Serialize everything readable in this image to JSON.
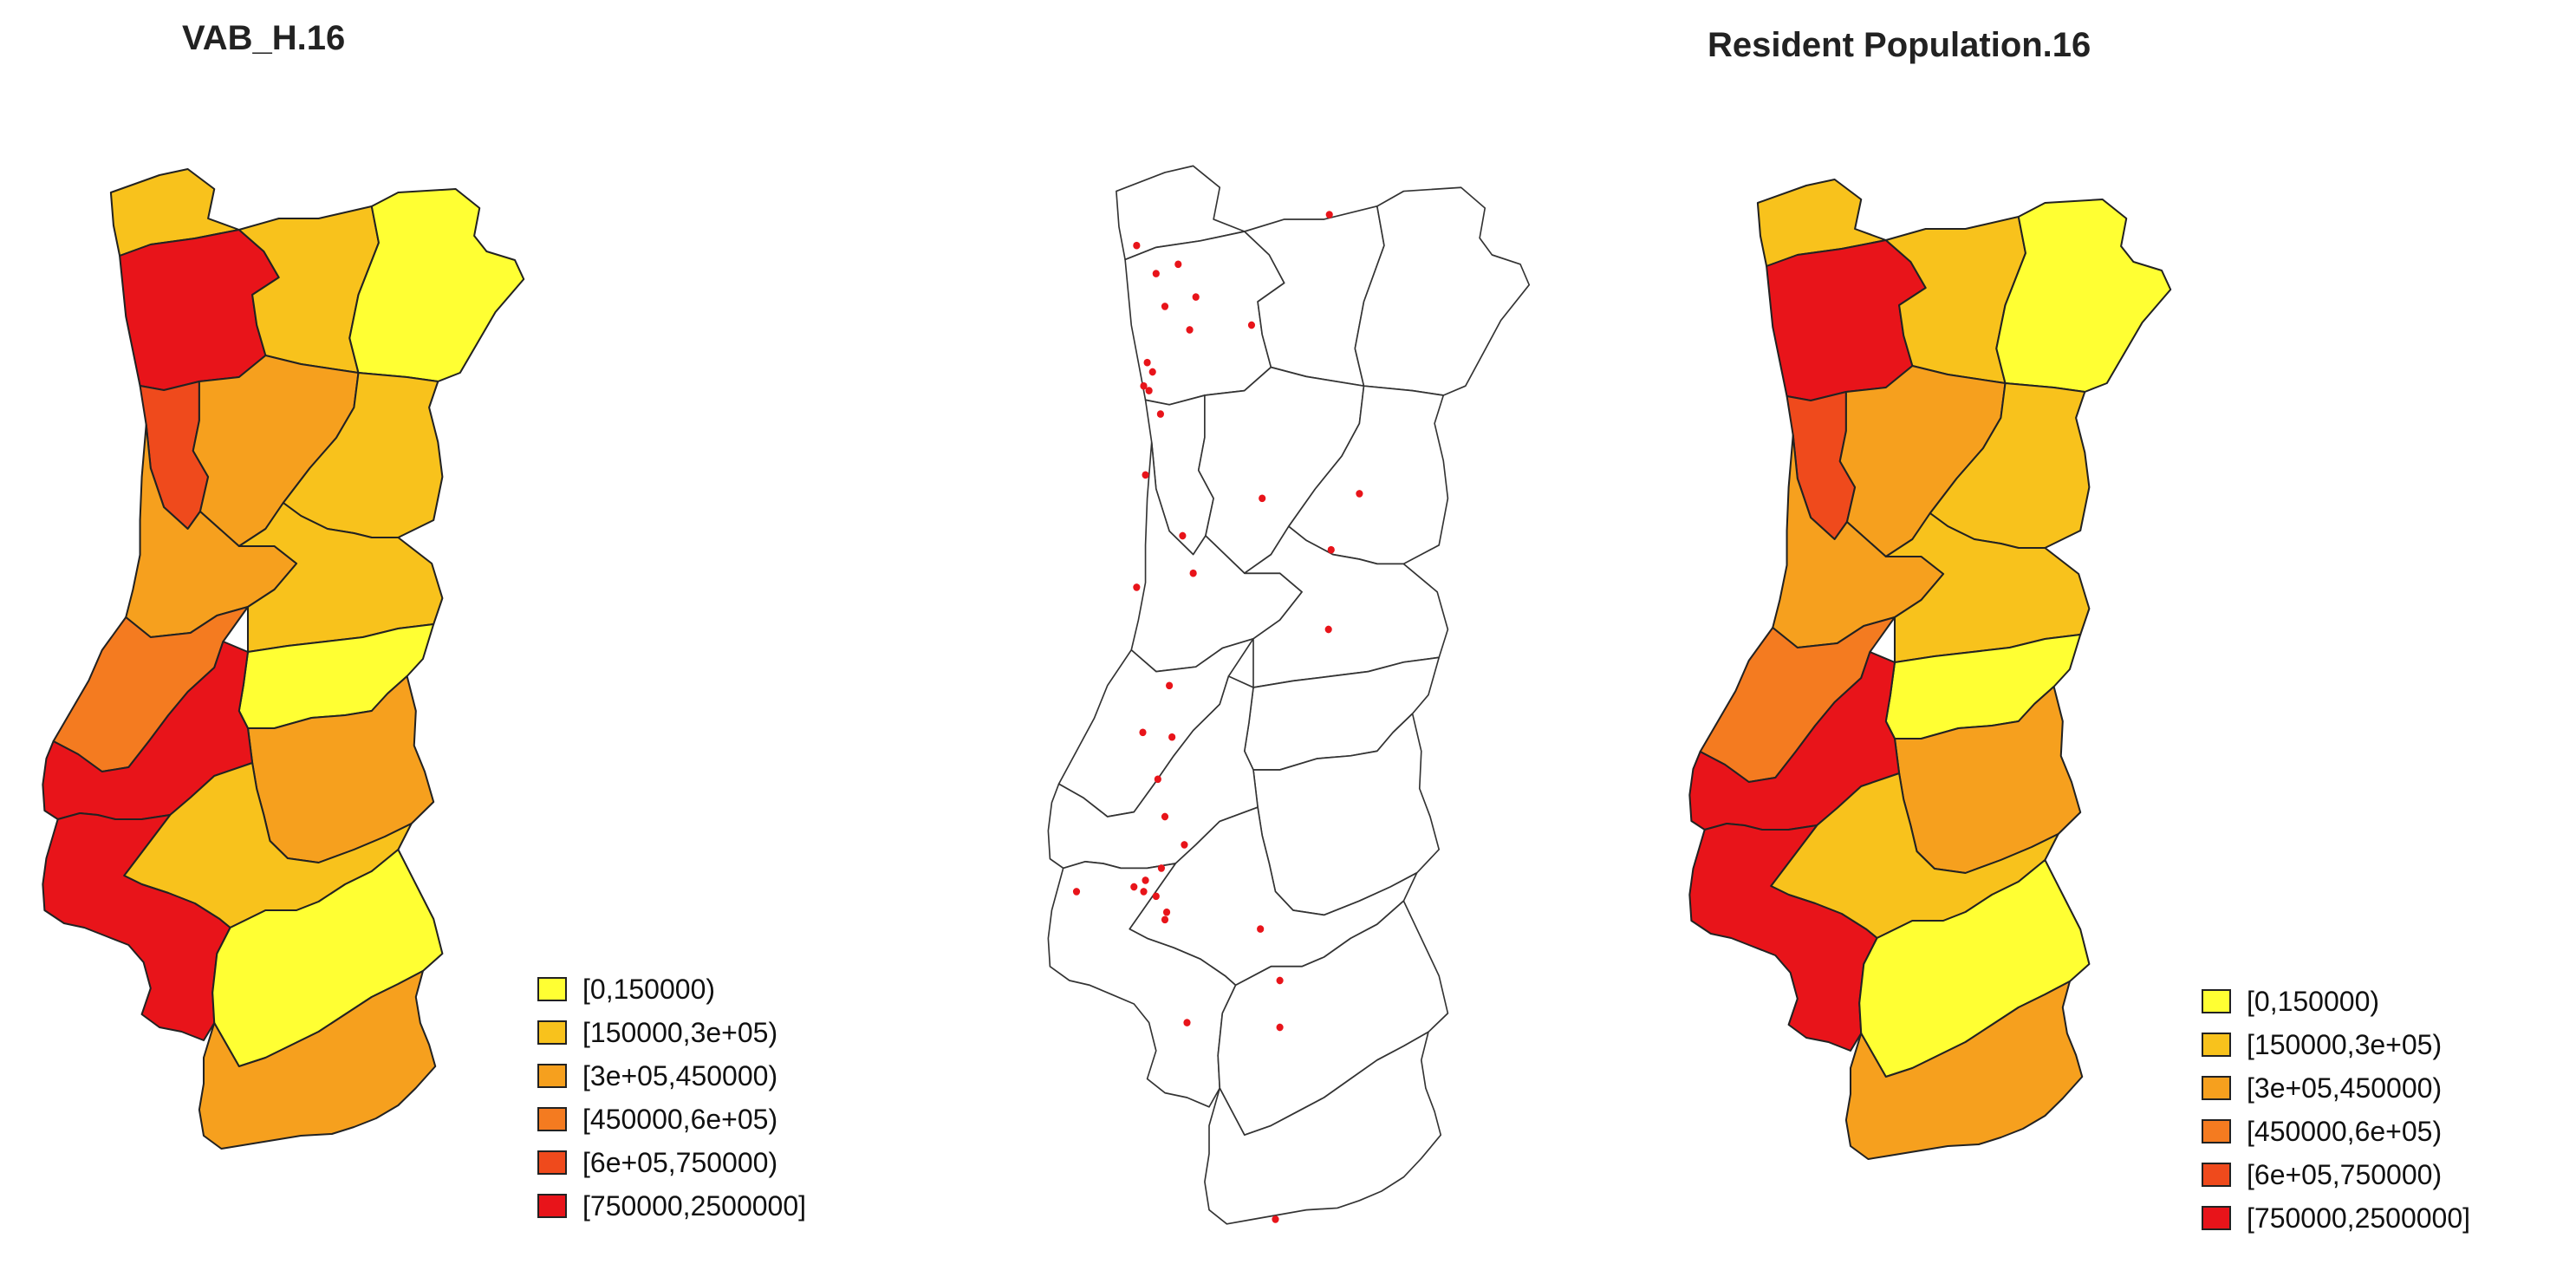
{
  "maps": {
    "left": {
      "title": "VAB_H.16"
    },
    "right": {
      "title": "Resident Population.16"
    }
  },
  "palette": {
    "c0": "#ffff33",
    "c1": "#f8c21c",
    "c2": "#f6a01e",
    "c3": "#f47b20",
    "c4": "#ef4a1c",
    "c5": "#e8141a"
  },
  "legend": {
    "items": [
      {
        "label": "[0,150000)",
        "color": "#ffff33"
      },
      {
        "label": "[150000,3e+05)",
        "color": "#f8c21c"
      },
      {
        "label": "[3e+05,450000)",
        "color": "#f6a01e"
      },
      {
        "label": "[450000,6e+05)",
        "color": "#f47b20"
      },
      {
        "label": "[6e+05,750000)",
        "color": "#ef4a1c"
      },
      {
        "label": "[750000,2500000]",
        "color": "#e8141a"
      }
    ]
  },
  "regions_left": [
    "c1",
    "c5",
    "c1",
    "c0",
    "c4",
    "c2",
    "c1",
    "c2",
    "c3",
    "c1",
    "c0",
    "c2",
    "c5",
    "c1",
    "c5",
    "c0",
    "c2"
  ],
  "regions_right": [
    "c1",
    "c5",
    "c1",
    "c0",
    "c4",
    "c2",
    "c1",
    "c2",
    "c3",
    "c1",
    "c0",
    "c2",
    "c5",
    "c1",
    "c5",
    "c0",
    "c2"
  ],
  "center_map": {
    "region_fill": "#ffffff",
    "point_color": "#e8141a"
  }
}
